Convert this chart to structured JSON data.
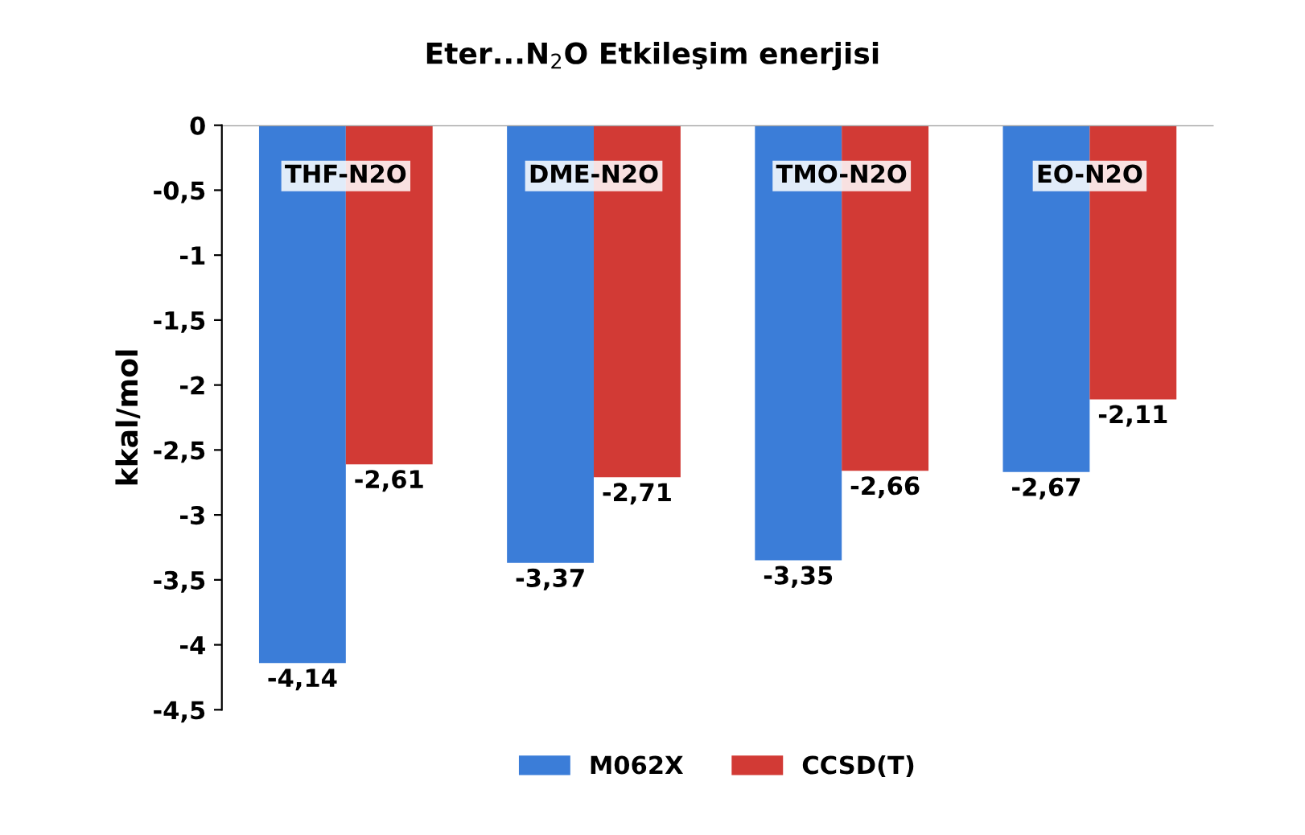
{
  "chart_data": {
    "type": "bar",
    "title": "Eter...N$_{2}$O Etkileşim enerjisi",
    "ylabel": "kkal/mol",
    "categories": [
      "THF-N2O",
      "DME-N2O",
      "TMO-N2O",
      "EO-N2O"
    ],
    "series": [
      {
        "name": "M062X",
        "color": "#3b7dd8",
        "values": [
          -4.14,
          -3.37,
          -3.35,
          -2.67
        ],
        "value_labels": [
          "-4,14",
          "-3,37",
          "-3,35",
          "-2,67"
        ]
      },
      {
        "name": "CCSD(T)",
        "color": "#d23a35",
        "values": [
          -2.61,
          -2.71,
          -2.66,
          -2.11
        ],
        "value_labels": [
          "-2,61",
          "-2,71",
          "-2,66",
          "-2,11"
        ]
      }
    ],
    "ylim": [
      -4.5,
      0
    ],
    "yticks": [
      0,
      {
        "value": -0.5,
        "label": "-0,5"
      },
      -1,
      {
        "value": -1.5,
        "label": "-1,5"
      },
      -2,
      {
        "value": -2.5,
        "label": "-2,5"
      },
      -3,
      {
        "value": -3.5,
        "label": "-3,5"
      },
      -4,
      {
        "value": -4.5,
        "label": "-4,5"
      }
    ],
    "grid": false,
    "legend": "bottom"
  }
}
